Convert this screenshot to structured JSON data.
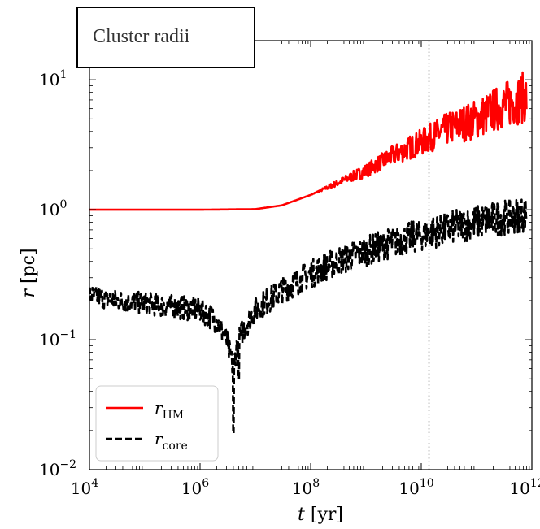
{
  "chart_data": {
    "type": "line",
    "title": "Cluster radii",
    "xscale": "log",
    "yscale": "log",
    "xlim": [
      10000,
      1000000000000
    ],
    "ylim": [
      0.01,
      20
    ],
    "xlabel": {
      "var": "t",
      "unit": "[yr]"
    },
    "ylabel": {
      "var": "r",
      "unit": "[pc]"
    },
    "x_ticks": [
      {
        "base": "10",
        "exp": "4",
        "value": 10000
      },
      {
        "base": "10",
        "exp": "6",
        "value": 1000000
      },
      {
        "base": "10",
        "exp": "8",
        "value": 100000000
      },
      {
        "base": "10",
        "exp": "10",
        "value": 10000000000
      },
      {
        "base": "10",
        "exp": "12",
        "value": 1000000000000
      }
    ],
    "y_ticks": [
      {
        "base": "10",
        "exp": "−2",
        "value": 0.01
      },
      {
        "base": "10",
        "exp": "−1",
        "value": 0.1
      },
      {
        "base": "10",
        "exp": "0",
        "value": 1
      },
      {
        "base": "10",
        "exp": "1",
        "value": 10
      }
    ],
    "vline": {
      "x": 13800000000,
      "color": "#999999",
      "style": "dotted"
    },
    "legend": {
      "placement": "lower-left"
    },
    "series": [
      {
        "key": "rHM",
        "label_var": "r",
        "label_sub": "HM",
        "color": "#ff0000",
        "style": "solid",
        "points": [
          [
            10000,
            1.0
          ],
          [
            100000,
            1.0
          ],
          [
            1000000,
            1.0
          ],
          [
            10000000,
            1.01
          ],
          [
            30000000,
            1.08
          ],
          [
            100000000,
            1.3
          ],
          [
            300000000,
            1.6
          ],
          [
            1000000000,
            2.0
          ],
          [
            3000000000,
            2.6
          ],
          [
            10000000000,
            3.3
          ],
          [
            30000000000,
            4.2
          ],
          [
            100000000000,
            5.0
          ],
          [
            300000000000,
            6.3
          ],
          [
            800000000000,
            7.5
          ]
        ],
        "noise_start": 100000000,
        "noise_amp": [
          0.0,
          0.2
        ]
      },
      {
        "key": "rcore",
        "label_var": "r",
        "label_sub": "core",
        "color": "#000000",
        "style": "dashed",
        "points": [
          [
            10000,
            0.22
          ],
          [
            30000,
            0.2
          ],
          [
            100000,
            0.19
          ],
          [
            300000,
            0.18
          ],
          [
            1000000,
            0.17
          ],
          [
            2000000,
            0.14
          ],
          [
            3000000,
            0.1
          ],
          [
            3500000,
            0.075
          ],
          [
            4000000,
            0.06
          ],
          [
            4500000,
            0.085
          ],
          [
            6000000,
            0.12
          ],
          [
            10000000,
            0.17
          ],
          [
            30000000,
            0.24
          ],
          [
            100000000,
            0.32
          ],
          [
            300000000,
            0.4
          ],
          [
            1000000000,
            0.48
          ],
          [
            3000000000,
            0.56
          ],
          [
            10000000000,
            0.64
          ],
          [
            30000000000,
            0.72
          ],
          [
            100000000000,
            0.8
          ],
          [
            300000000000,
            0.87
          ],
          [
            800000000000,
            0.93
          ]
        ],
        "noise_start": 10000,
        "noise_amp": [
          0.08,
          0.14
        ],
        "dips": [
          [
            4000000,
            0.019
          ],
          [
            3200000,
            0.09
          ],
          [
            5000000,
            0.05
          ]
        ]
      }
    ]
  }
}
